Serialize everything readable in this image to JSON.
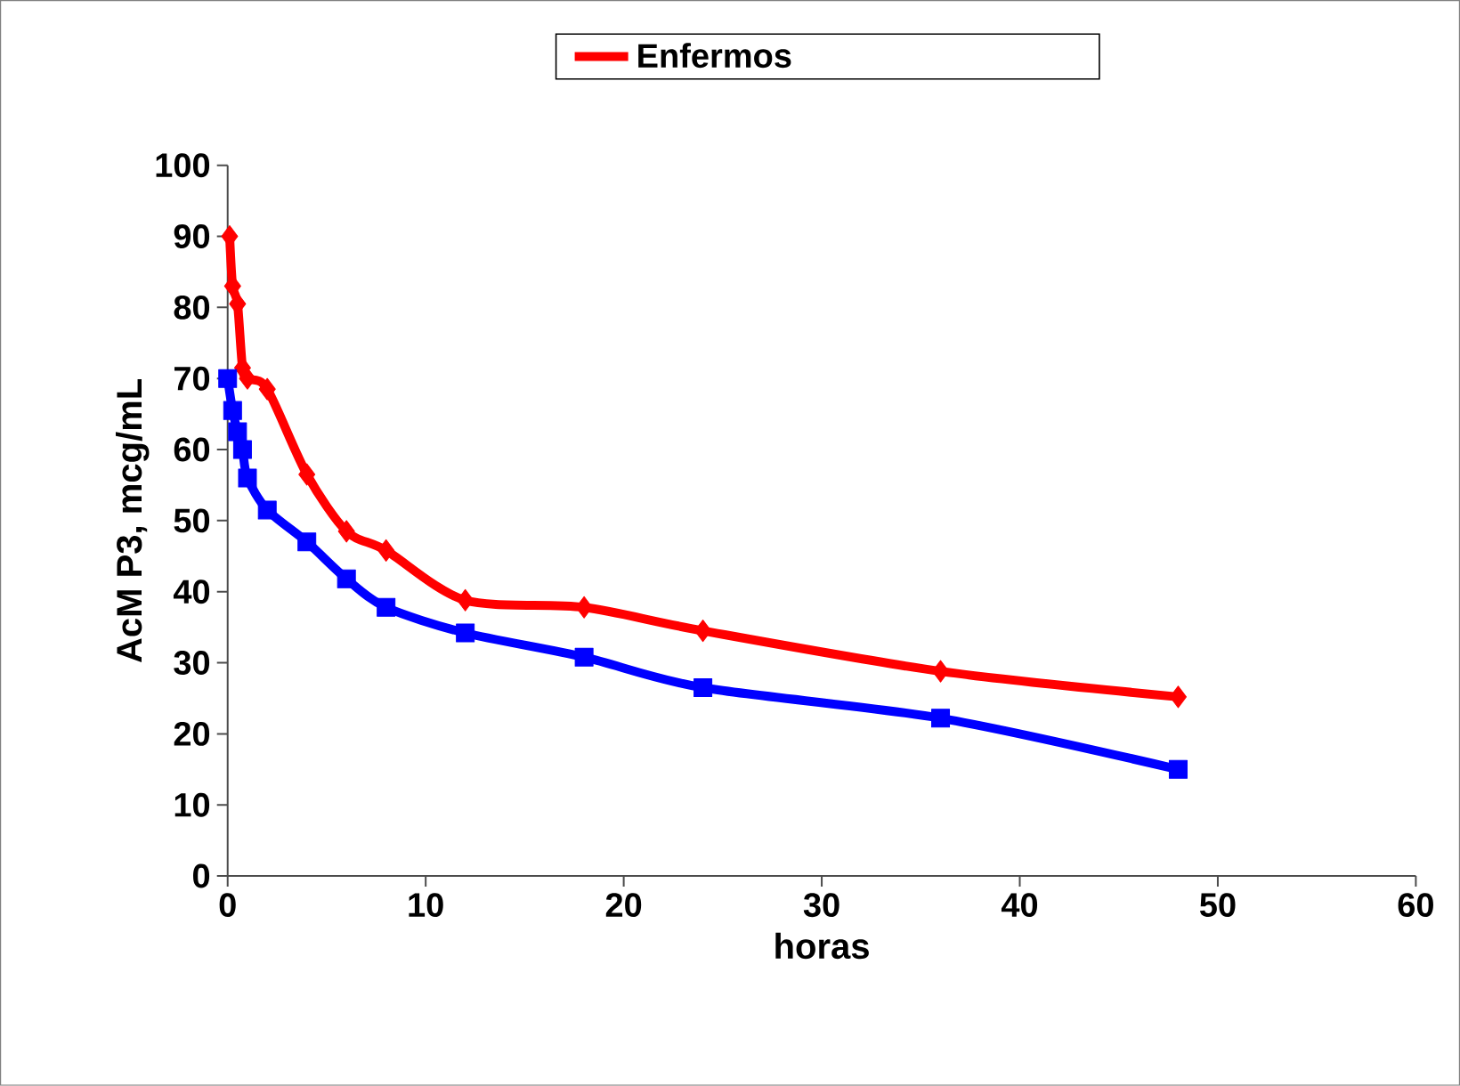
{
  "chart_data": {
    "type": "line",
    "xlabel": "horas",
    "ylabel": "AcM P3, mcg/mL",
    "legend": "top",
    "line_style": "solid",
    "xlim": [
      0,
      60
    ],
    "xticks": [
      0,
      10,
      20,
      30,
      40,
      50,
      60
    ],
    "ylim": [
      0,
      100
    ],
    "yticks": [
      0,
      10,
      20,
      30,
      40,
      50,
      60,
      70,
      80,
      90,
      100
    ],
    "series": [
      {
        "name": "Enfermos",
        "color": "#ff0000",
        "marker": "diamond",
        "x": [
          0.1,
          0.25,
          0.5,
          0.75,
          1,
          2,
          4,
          6,
          8,
          12,
          18,
          24,
          36,
          48
        ],
        "values": [
          90,
          83,
          80.5,
          71.5,
          70,
          68.5,
          56.5,
          48.5,
          45.8,
          38.8,
          37.8,
          34.5,
          28.8,
          25.2
        ]
      },
      {
        "color": "#0000ff",
        "marker": "square",
        "x": [
          0,
          0.25,
          0.5,
          0.75,
          1,
          2,
          4,
          6,
          8,
          12,
          18,
          24,
          36,
          48
        ],
        "values": [
          70,
          65.5,
          62.5,
          60,
          56,
          51.5,
          47,
          41.8,
          37.8,
          34.2,
          30.8,
          26.5,
          22.2,
          15
        ]
      }
    ]
  }
}
